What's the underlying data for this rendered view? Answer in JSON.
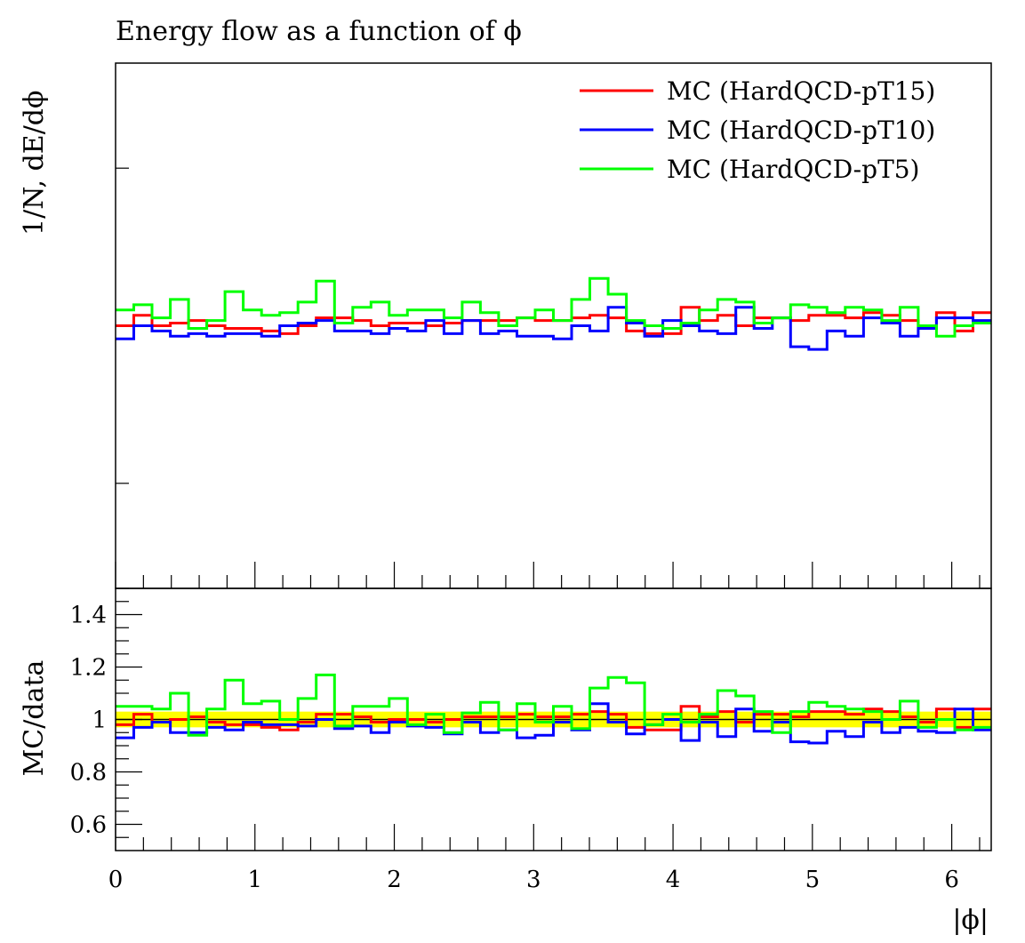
{
  "chart_data": [
    {
      "type": "line",
      "panel": "main",
      "title": "Energy flow as a function of ϕ",
      "ylabel": "1/N, dE/dϕ",
      "xlim": [
        0,
        6.2832
      ],
      "ylim": [
        0,
        1
      ],
      "bin_edges": [
        0,
        0.1309,
        0.2618,
        0.3927,
        0.5236,
        0.6545,
        0.7854,
        0.9163,
        1.0472,
        1.1781,
        1.309,
        1.4399,
        1.5708,
        1.7017,
        1.8326,
        1.9635,
        2.0944,
        2.2253,
        2.3562,
        2.4871,
        2.618,
        2.7489,
        2.8798,
        3.0107,
        3.1416,
        3.2725,
        3.4034,
        3.5343,
        3.6652,
        3.7961,
        3.927,
        4.0579,
        4.1888,
        4.3197,
        4.4506,
        4.5815,
        4.7124,
        4.8433,
        4.9742,
        5.1051,
        5.236,
        5.3669,
        5.4978,
        5.6287,
        5.7596,
        5.8905,
        6.0214,
        6.1523,
        6.2832
      ],
      "legend_position": "top-right",
      "series": [
        {
          "name": "MC (HardQCD-pT15)",
          "color": "#ff0000",
          "values": [
            0.5,
            0.52,
            0.5,
            0.505,
            0.51,
            0.5,
            0.495,
            0.495,
            0.49,
            0.485,
            0.5,
            0.515,
            0.515,
            0.51,
            0.5,
            0.505,
            0.505,
            0.5,
            0.505,
            0.51,
            0.51,
            0.51,
            0.515,
            0.51,
            0.51,
            0.515,
            0.52,
            0.515,
            0.49,
            0.485,
            0.485,
            0.535,
            0.51,
            0.52,
            0.5,
            0.515,
            0.515,
            0.51,
            0.52,
            0.52,
            0.515,
            0.525,
            0.52,
            0.51,
            0.5,
            0.525,
            0.49,
            0.525
          ]
        },
        {
          "name": "MC (HardQCD-pT10)",
          "color": "#0000ff",
          "values": [
            0.475,
            0.5,
            0.49,
            0.48,
            0.485,
            0.48,
            0.485,
            0.485,
            0.48,
            0.5,
            0.505,
            0.51,
            0.49,
            0.49,
            0.485,
            0.495,
            0.49,
            0.51,
            0.485,
            0.51,
            0.485,
            0.49,
            0.48,
            0.48,
            0.475,
            0.5,
            0.49,
            0.535,
            0.505,
            0.48,
            0.51,
            0.5,
            0.49,
            0.485,
            0.535,
            0.495,
            0.515,
            0.46,
            0.455,
            0.49,
            0.48,
            0.515,
            0.505,
            0.48,
            0.495,
            0.515,
            0.515,
            0.51
          ]
        },
        {
          "name": "MC (HardQCD-pT5)",
          "color": "#00ff00",
          "values": [
            0.53,
            0.54,
            0.515,
            0.55,
            0.495,
            0.51,
            0.565,
            0.53,
            0.52,
            0.525,
            0.545,
            0.585,
            0.505,
            0.535,
            0.545,
            0.52,
            0.53,
            0.53,
            0.515,
            0.545,
            0.525,
            0.5,
            0.515,
            0.53,
            0.51,
            0.55,
            0.59,
            0.56,
            0.51,
            0.5,
            0.495,
            0.505,
            0.53,
            0.55,
            0.545,
            0.505,
            0.515,
            0.54,
            0.535,
            0.525,
            0.535,
            0.53,
            0.51,
            0.535,
            0.5,
            0.48,
            0.5,
            0.505
          ]
        }
      ]
    },
    {
      "type": "line",
      "panel": "ratio",
      "xlabel": "|ϕ|",
      "ylabel": "MC/data",
      "xlim": [
        0,
        6.2832
      ],
      "ylim": [
        0.5,
        1.5
      ],
      "xticks": [
        0,
        1,
        2,
        3,
        4,
        5,
        6
      ],
      "yticks": [
        0.6,
        0.8,
        1,
        1.2,
        1.4
      ],
      "band": {
        "center": 1,
        "lower": 0.97,
        "upper": 1.03,
        "color": "#ffff00"
      },
      "series": [
        {
          "name": "MC (HardQCD-pT15)",
          "color": "#ff0000",
          "values": [
            0.98,
            1.02,
            0.99,
            1.0,
            1.01,
            0.99,
            0.98,
            0.98,
            0.97,
            0.96,
            0.99,
            1.02,
            1.02,
            1.01,
            0.99,
            1.0,
            1.0,
            0.99,
            1.0,
            1.01,
            1.01,
            1.01,
            1.02,
            1.01,
            1.01,
            1.02,
            1.03,
            1.02,
            0.97,
            0.96,
            0.96,
            1.05,
            1.01,
            1.03,
            0.99,
            1.02,
            1.02,
            1.01,
            1.03,
            1.03,
            1.02,
            1.04,
            1.03,
            1.01,
            0.99,
            1.04,
            0.97,
            1.04
          ]
        },
        {
          "name": "MC (HardQCD-pT10)",
          "color": "#0000ff",
          "values": [
            0.93,
            0.97,
            0.99,
            0.95,
            0.95,
            0.97,
            0.96,
            0.99,
            0.98,
            0.98,
            0.975,
            1.0,
            0.965,
            0.975,
            0.95,
            0.99,
            0.975,
            0.97,
            0.945,
            0.99,
            0.95,
            0.96,
            0.93,
            0.94,
            0.99,
            0.96,
            1.06,
            0.99,
            0.945,
            0.98,
            1.0,
            0.92,
            0.99,
            0.935,
            1.04,
            0.955,
            0.99,
            0.915,
            0.91,
            0.955,
            0.935,
            0.99,
            0.95,
            0.97,
            0.955,
            0.95,
            1.04,
            0.96
          ]
        },
        {
          "name": "MC (HardQCD-pT5)",
          "color": "#00ff00",
          "values": [
            1.05,
            1.05,
            1.04,
            1.1,
            0.94,
            1.04,
            1.15,
            1.06,
            1.07,
            1.0,
            1.08,
            1.17,
            0.975,
            1.05,
            1.05,
            1.08,
            0.98,
            1.02,
            0.95,
            1.025,
            1.065,
            0.96,
            1.06,
            0.99,
            1.05,
            0.965,
            1.12,
            1.16,
            1.14,
            0.98,
            1.02,
            0.99,
            1.02,
            1.11,
            1.09,
            1.03,
            0.95,
            1.03,
            1.065,
            1.05,
            1.04,
            1.03,
            1.0,
            1.07,
            0.97,
            1.0,
            0.96,
            0.97
          ]
        }
      ]
    }
  ]
}
